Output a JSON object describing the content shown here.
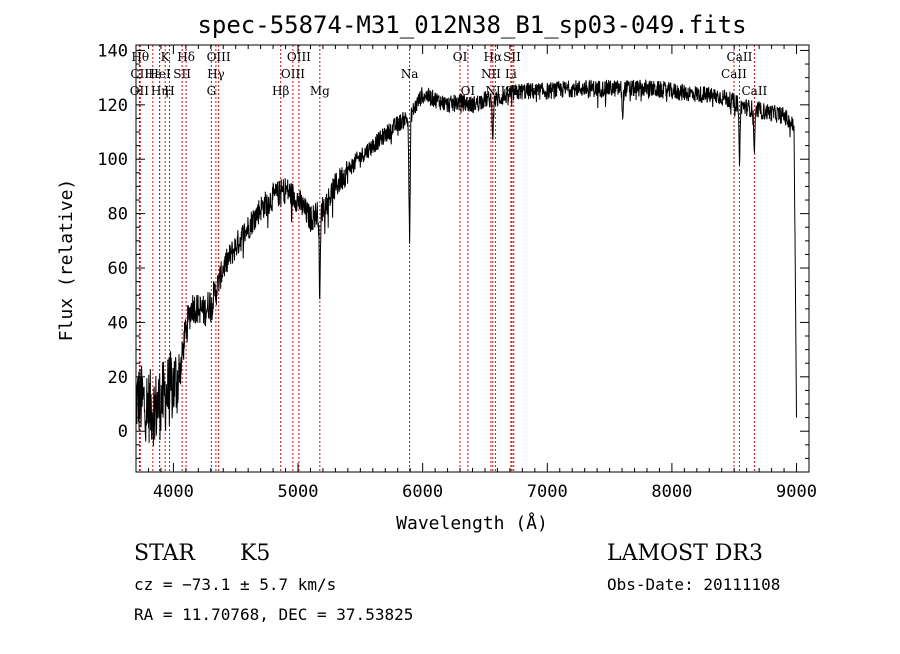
{
  "chart_data": {
    "type": "line",
    "title": "spec-55874-M31_012N38_B1_sp03-049.fits",
    "xlabel": "Wavelength (Å)",
    "ylabel": "Flux (relative)",
    "xlim": [
      3700,
      9100
    ],
    "ylim": [
      -15,
      142
    ],
    "xticks": [
      4000,
      5000,
      6000,
      7000,
      8000,
      9000
    ],
    "yticks": [
      0,
      20,
      40,
      60,
      80,
      100,
      120,
      140
    ],
    "xtick_labels": [
      "4000",
      "5000",
      "6000",
      "7000",
      "8000",
      "9000"
    ],
    "ytick_labels": [
      "0",
      "20",
      "40",
      "60",
      "80",
      "100",
      "120",
      "140"
    ],
    "spectrum_trend": {
      "x": [
        3700,
        3780,
        3850,
        3950,
        4050,
        4100,
        4150,
        4250,
        4330,
        4400,
        4500,
        4600,
        4700,
        4800,
        4900,
        5000,
        5100,
        5200,
        5300,
        5400,
        5500,
        5600,
        5700,
        5800,
        5900,
        5950,
        6000,
        6100,
        6200,
        6300,
        6400,
        6500,
        6600,
        6700,
        6800,
        7000,
        7200,
        7400,
        7600,
        7800,
        8000,
        8200,
        8400,
        8500,
        8600,
        8700,
        8800,
        8900,
        8980,
        9000
      ],
      "y": [
        12,
        10,
        8,
        14,
        20,
        38,
        46,
        44,
        50,
        60,
        68,
        75,
        82,
        86,
        89,
        85,
        78,
        82,
        90,
        96,
        101,
        105,
        109,
        113,
        116,
        120,
        124,
        122,
        120,
        121,
        120,
        122,
        122,
        124,
        125,
        125,
        126,
        126,
        126,
        126,
        125,
        124,
        123,
        121,
        119,
        118,
        117,
        116,
        112,
        5
      ]
    },
    "absorption_features": [
      {
        "x": 5175,
        "depth": 30
      },
      {
        "x": 5895,
        "depth": 45
      },
      {
        "x": 6563,
        "depth": 12
      },
      {
        "x": 7605,
        "depth": 10
      },
      {
        "x": 8542,
        "depth": 20
      },
      {
        "x": 8662,
        "depth": 16
      }
    ],
    "reference_lines": [
      {
        "label": "Hθ",
        "x": 3734,
        "row": 0
      },
      {
        "label": "CII",
        "x": 3730,
        "row": 1
      },
      {
        "label": "OII",
        "x": 3727,
        "row": 2
      },
      {
        "label": "Hε",
        "x": 3835,
        "row": 1
      },
      {
        "label": "K",
        "x": 3934,
        "row": 0
      },
      {
        "label": "HeI",
        "x": 3889,
        "row": 1
      },
      {
        "label": "Hη",
        "x": 3890,
        "row": 2
      },
      {
        "label": "SII",
        "x": 4070,
        "row": 1
      },
      {
        "label": "H",
        "x": 3969,
        "row": 2
      },
      {
        "label": "Hδ",
        "x": 4102,
        "row": 0
      },
      {
        "label": "OIII",
        "x": 4363,
        "row": 0
      },
      {
        "label": "Hγ",
        "x": 4341,
        "row": 1
      },
      {
        "label": "G",
        "x": 4305,
        "row": 2
      },
      {
        "label": "OIII",
        "x": 5007,
        "row": 0
      },
      {
        "label": "OIII",
        "x": 4959,
        "row": 1
      },
      {
        "label": "Hβ",
        "x": 4861,
        "row": 2
      },
      {
        "label": "Mg",
        "x": 5175,
        "row": 2
      },
      {
        "label": "Na",
        "x": 5895,
        "row": 1
      },
      {
        "label": "OI",
        "x": 6300,
        "row": 0
      },
      {
        "label": "OI",
        "x": 6363,
        "row": 2
      },
      {
        "label": "Hα",
        "x": 6563,
        "row": 0
      },
      {
        "label": "SII",
        "x": 6717,
        "row": 0
      },
      {
        "label": "NII",
        "x": 6548,
        "row": 1
      },
      {
        "label": "Li",
        "x": 6708,
        "row": 1
      },
      {
        "label": "NII",
        "x": 6584,
        "row": 2
      },
      {
        "label": "SII",
        "x": 6731,
        "row": 2
      },
      {
        "label": "CaII",
        "x": 8542,
        "row": 0
      },
      {
        "label": "CaII",
        "x": 8498,
        "row": 1
      },
      {
        "label": "CaII",
        "x": 8662,
        "row": 2
      }
    ]
  },
  "info": {
    "object_class": "STAR",
    "subclass": "K5",
    "survey": "LAMOST DR3",
    "redshift": "cz = −73.1 ± 5.7 km/s",
    "obs_date": "Obs-Date: 20111108",
    "coords": "RA =  11.70768, DEC =  37.53825"
  }
}
